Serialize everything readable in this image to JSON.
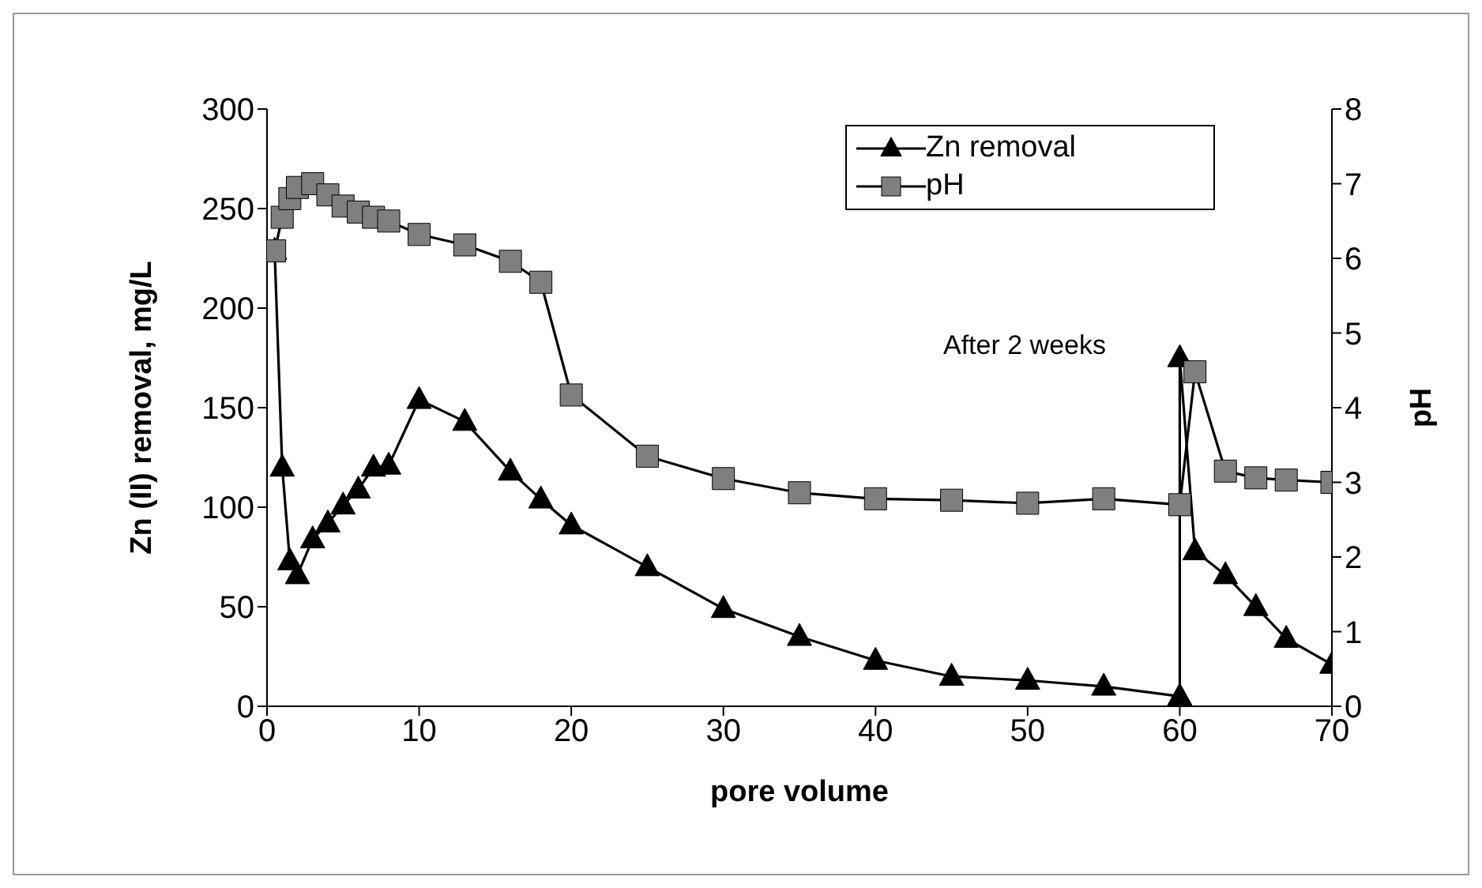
{
  "chart_data": {
    "type": "line",
    "xlabel": "pore volume",
    "ylabel": "Zn (II)  removal, mg/L",
    "y2label": "pH",
    "xlim": [
      0,
      70
    ],
    "xticks": [
      0,
      10,
      20,
      30,
      40,
      50,
      60,
      70
    ],
    "ylim": [
      0,
      300
    ],
    "yticks": [
      0,
      50,
      100,
      150,
      200,
      250,
      300
    ],
    "y2lim": [
      0,
      8
    ],
    "y2ticks": [
      0,
      1,
      2,
      3,
      4,
      5,
      6,
      7,
      8
    ],
    "legend": "top right",
    "line_style": "solid",
    "annotations": [
      "After 2 weeks"
    ],
    "series": [
      {
        "name": "Zn removal",
        "color": "#000000",
        "marker": "triangle",
        "x": [
          0.5,
          1,
          1.5,
          2,
          3,
          4,
          5,
          6,
          7,
          8,
          10,
          13,
          16,
          18,
          20,
          25,
          30,
          35,
          40,
          45,
          50,
          55,
          60,
          60,
          61,
          63,
          65,
          67,
          70
        ],
        "values": [
          229,
          120,
          73,
          66,
          84,
          92,
          101,
          109,
          120,
          121,
          154,
          143,
          118,
          104,
          91,
          70,
          49,
          35,
          23,
          15,
          13,
          10,
          5,
          175,
          78,
          66,
          50,
          34,
          21
        ]
      },
      {
        "name": "pH",
        "color": "#7f7f7f",
        "axis": "y2",
        "marker": "square",
        "x": [
          0.5,
          1,
          1.5,
          2,
          3,
          4,
          5,
          6,
          7,
          8,
          10,
          13,
          16,
          18,
          20,
          25,
          30,
          35,
          40,
          45,
          50,
          55,
          60,
          61,
          63,
          65,
          67,
          70
        ],
        "values": [
          6.1,
          6.55,
          6.8,
          6.95,
          7.0,
          6.85,
          6.7,
          6.62,
          6.55,
          6.5,
          6.32,
          6.18,
          5.96,
          5.68,
          4.17,
          3.35,
          3.05,
          2.86,
          2.78,
          2.76,
          2.72,
          2.78,
          2.7,
          4.48,
          3.15,
          3.06,
          3.03,
          3.0
        ]
      }
    ]
  }
}
